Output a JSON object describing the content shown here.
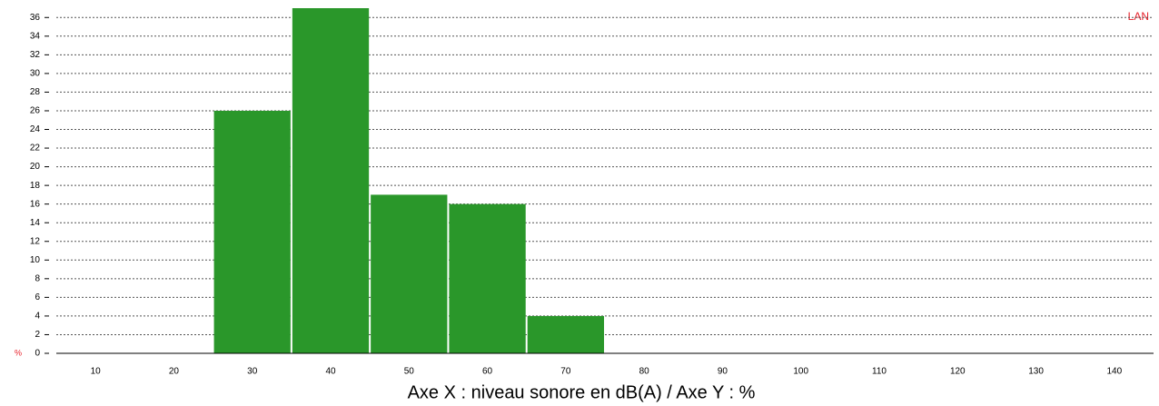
{
  "chart_data": {
    "type": "histogram",
    "bins": [
      25,
      35,
      45,
      55,
      65,
      75
    ],
    "values": [
      26,
      37,
      17,
      16,
      4
    ],
    "color": "#2a972a",
    "xlim": [
      5,
      145
    ],
    "xticks": [
      10,
      20,
      30,
      40,
      50,
      60,
      70,
      80,
      90,
      100,
      110,
      120,
      130,
      140
    ],
    "ylim": [
      0,
      37
    ],
    "yticks": [
      0,
      2,
      4,
      6,
      8,
      10,
      12,
      14,
      16,
      18,
      20,
      22,
      24,
      26,
      28,
      30,
      32,
      34,
      36
    ],
    "ylabel": "%",
    "xlabel": "Axe X : niveau sonore en dB(A) / Axe Y : %",
    "annotations": [
      "LAN"
    ],
    "grid": true
  }
}
